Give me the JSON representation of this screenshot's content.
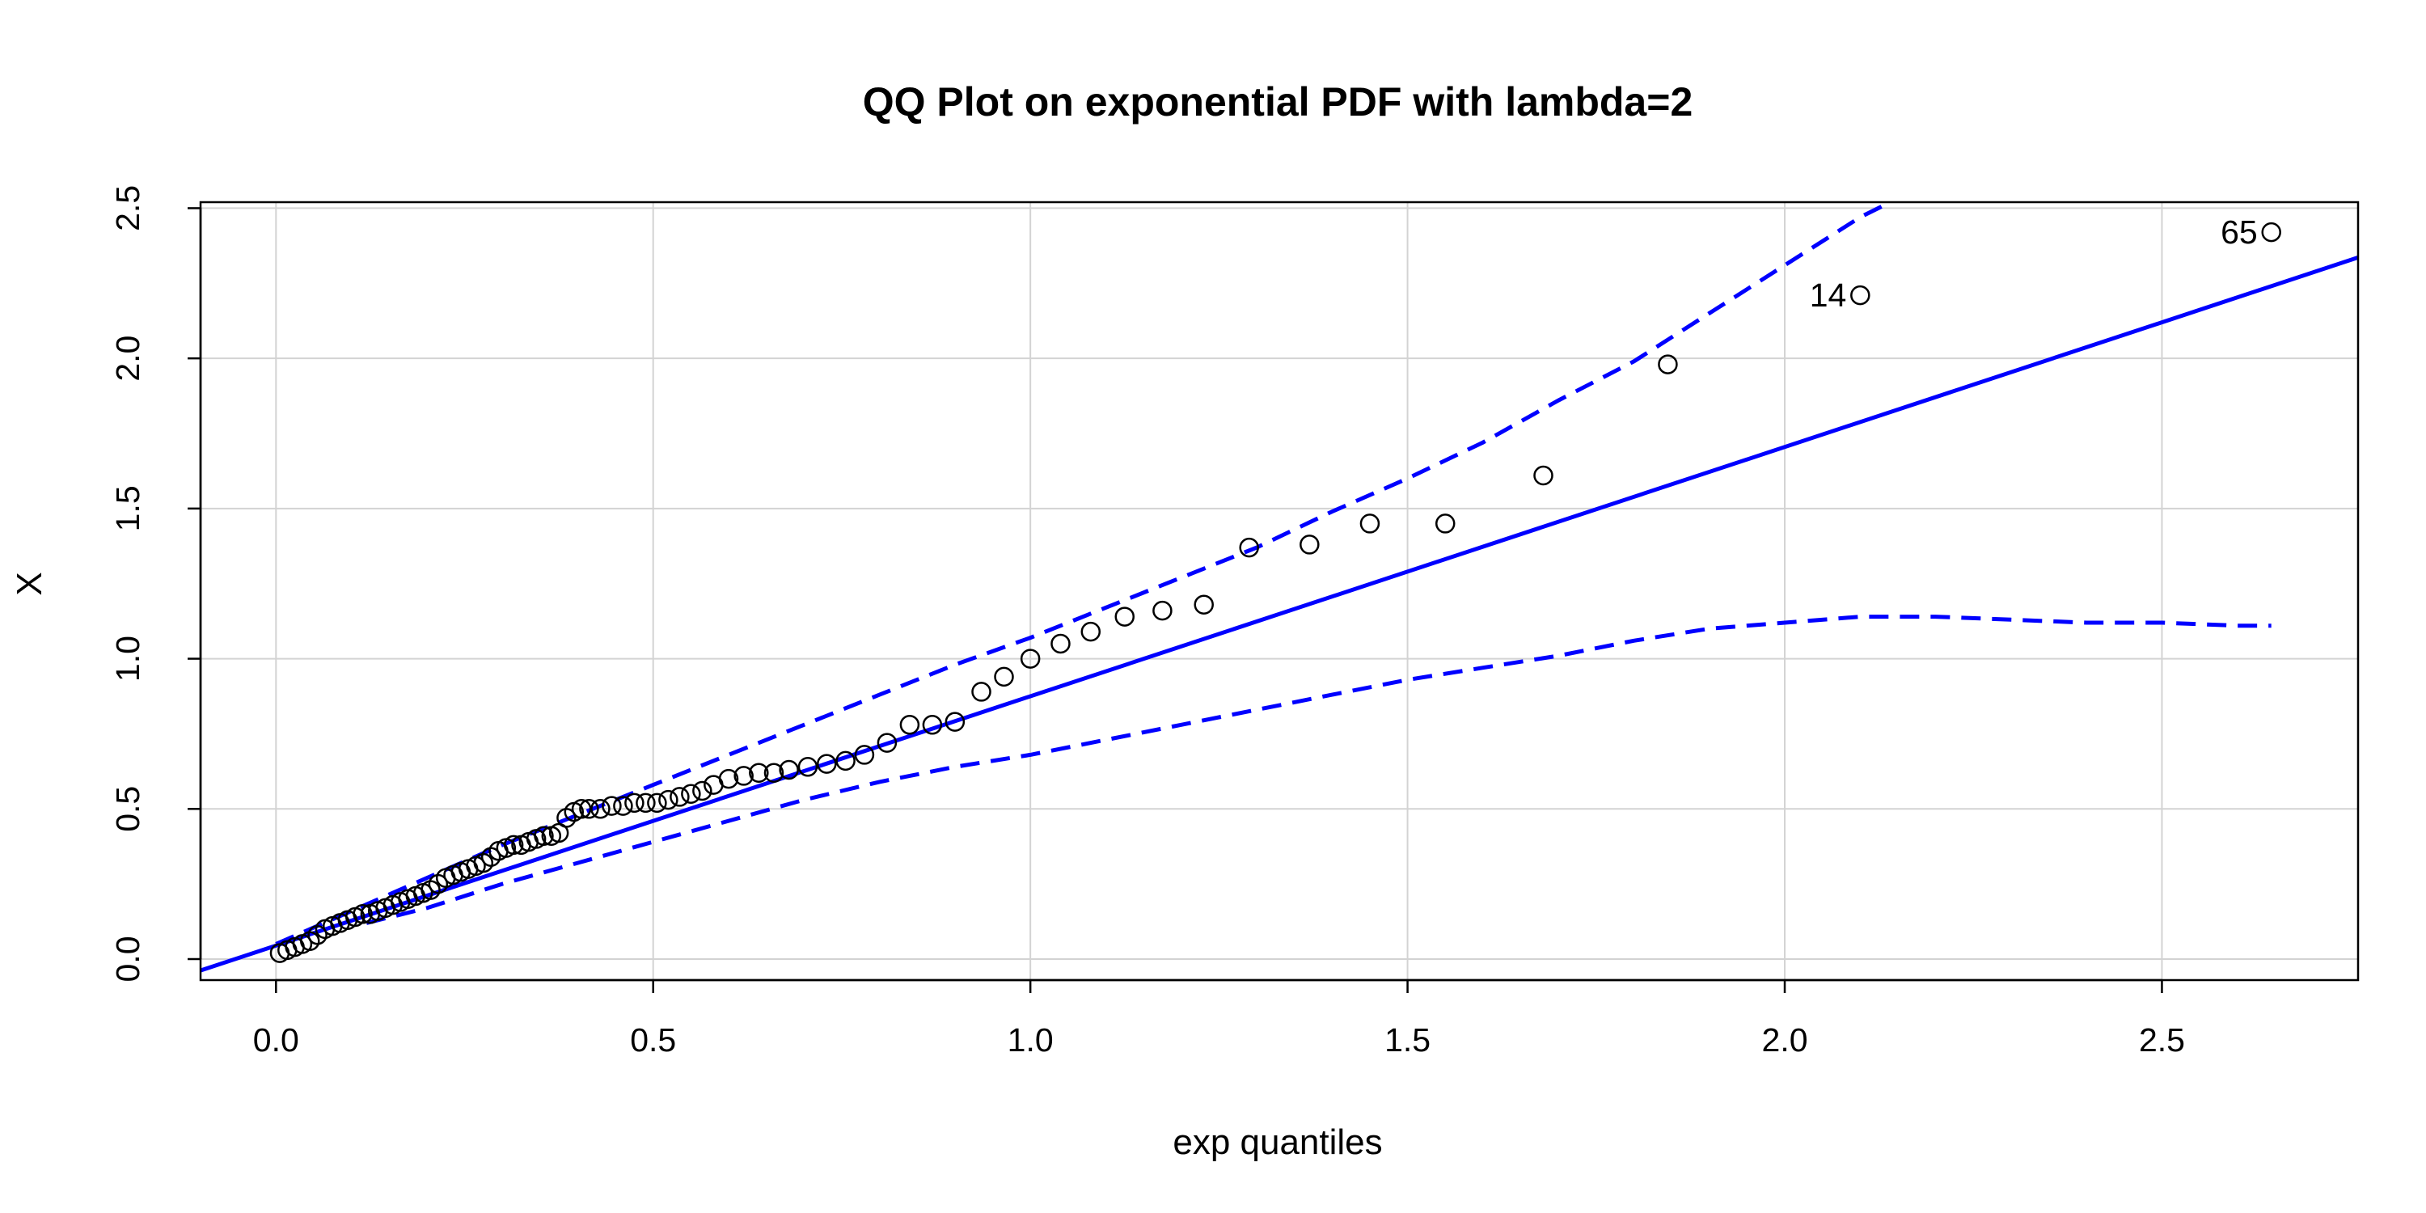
{
  "chart_data": {
    "type": "scatter",
    "title": "QQ Plot on exponential PDF with lambda=2",
    "xlabel": "exp quantiles",
    "ylabel": "X",
    "xlim": [
      -0.1,
      2.76
    ],
    "ylim": [
      -0.07,
      2.52
    ],
    "x_ticks": [
      0.0,
      0.5,
      1.0,
      1.5,
      2.0,
      2.5
    ],
    "x_tick_labels": [
      "0.0",
      "0.5",
      "1.0",
      "1.5",
      "2.0",
      "2.5"
    ],
    "y_ticks": [
      0.0,
      0.5,
      1.0,
      1.5,
      2.0,
      2.5
    ],
    "y_tick_labels": [
      "0.0",
      "0.5",
      "1.0",
      "1.5",
      "2.0",
      "2.5"
    ],
    "grid": true,
    "colors": {
      "reference": "#0000ff",
      "points": "#000000",
      "grid": "#d3d3d3"
    },
    "points": {
      "x": [
        0.005,
        0.015,
        0.025,
        0.035,
        0.045,
        0.055,
        0.065,
        0.075,
        0.085,
        0.095,
        0.105,
        0.115,
        0.125,
        0.135,
        0.145,
        0.155,
        0.165,
        0.175,
        0.185,
        0.195,
        0.205,
        0.215,
        0.225,
        0.235,
        0.245,
        0.255,
        0.265,
        0.275,
        0.285,
        0.295,
        0.305,
        0.315,
        0.325,
        0.335,
        0.345,
        0.355,
        0.365,
        0.375,
        0.385,
        0.395,
        0.405,
        0.415,
        0.43,
        0.445,
        0.46,
        0.475,
        0.49,
        0.505,
        0.52,
        0.535,
        0.55,
        0.565,
        0.58,
        0.6,
        0.62,
        0.64,
        0.66,
        0.68,
        0.705,
        0.73,
        0.755,
        0.78,
        0.81,
        0.84,
        0.87,
        0.9,
        0.935,
        0.965,
        1.0,
        1.04,
        1.08,
        1.125,
        1.175,
        1.23,
        1.29,
        1.37,
        1.45,
        1.55,
        1.68,
        1.845,
        2.1,
        2.645
      ],
      "y": [
        0.02,
        0.03,
        0.04,
        0.05,
        0.06,
        0.08,
        0.1,
        0.11,
        0.12,
        0.13,
        0.14,
        0.15,
        0.15,
        0.16,
        0.17,
        0.18,
        0.19,
        0.2,
        0.21,
        0.22,
        0.23,
        0.25,
        0.27,
        0.28,
        0.29,
        0.3,
        0.31,
        0.32,
        0.34,
        0.36,
        0.37,
        0.38,
        0.38,
        0.39,
        0.4,
        0.41,
        0.41,
        0.42,
        0.47,
        0.49,
        0.5,
        0.5,
        0.5,
        0.51,
        0.51,
        0.52,
        0.52,
        0.52,
        0.53,
        0.54,
        0.55,
        0.56,
        0.58,
        0.6,
        0.61,
        0.62,
        0.62,
        0.63,
        0.64,
        0.65,
        0.66,
        0.68,
        0.72,
        0.78,
        0.78,
        0.79,
        0.89,
        0.94,
        1.0,
        1.05,
        1.09,
        1.14,
        1.16,
        1.18,
        1.37,
        1.38,
        1.45,
        1.45,
        1.61,
        1.98,
        2.21,
        2.42
      ]
    },
    "labeled_points": [
      {
        "label": "14",
        "x": 2.1,
        "y": 2.21
      },
      {
        "label": "65",
        "x": 2.645,
        "y": 2.42
      }
    ],
    "reference_line": {
      "intercept": 0.045,
      "slope": 0.83
    },
    "upper_band": {
      "x": [
        0.0,
        0.1,
        0.2,
        0.3,
        0.4,
        0.5,
        0.6,
        0.7,
        0.8,
        0.9,
        1.0,
        1.1,
        1.2,
        1.3,
        1.4,
        1.5,
        1.6,
        1.7,
        1.8,
        1.9,
        2.0,
        2.1,
        2.14
      ],
      "y": [
        0.05,
        0.16,
        0.27,
        0.38,
        0.48,
        0.58,
        0.68,
        0.78,
        0.88,
        0.98,
        1.07,
        1.17,
        1.27,
        1.37,
        1.49,
        1.6,
        1.72,
        1.86,
        1.99,
        2.15,
        2.31,
        2.47,
        2.52
      ]
    },
    "lower_band": {
      "x": [
        0.12,
        0.2,
        0.3,
        0.4,
        0.5,
        0.6,
        0.7,
        0.8,
        0.9,
        1.0,
        1.1,
        1.2,
        1.3,
        1.4,
        1.5,
        1.6,
        1.7,
        1.8,
        1.9,
        2.0,
        2.1,
        2.2,
        2.3,
        2.4,
        2.5,
        2.6,
        2.645
      ],
      "y": [
        0.12,
        0.17,
        0.25,
        0.32,
        0.39,
        0.46,
        0.53,
        0.59,
        0.64,
        0.68,
        0.73,
        0.78,
        0.83,
        0.88,
        0.93,
        0.97,
        1.01,
        1.06,
        1.1,
        1.12,
        1.14,
        1.14,
        1.13,
        1.12,
        1.12,
        1.11,
        1.11
      ]
    }
  }
}
